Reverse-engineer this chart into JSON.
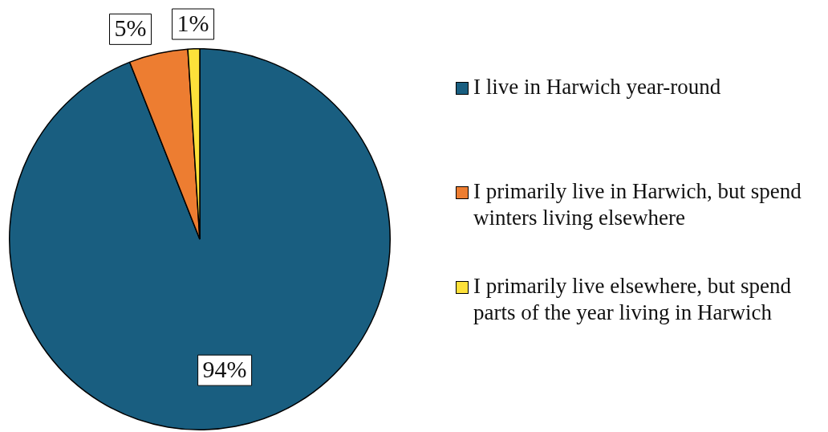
{
  "chart_data": {
    "type": "pie",
    "categories": [
      "I live in Harwich year-round",
      "I primarily live in Harwich, but spend winters living elsewhere",
      "I primarily live elsewhere, but spend parts of the year living in Harwich"
    ],
    "values": [
      94,
      5,
      1
    ],
    "colors": [
      "#195e80",
      "#ed7d31",
      "#fde13a"
    ],
    "value_labels": [
      "94%",
      "5%",
      "1%"
    ],
    "legend": "right"
  }
}
